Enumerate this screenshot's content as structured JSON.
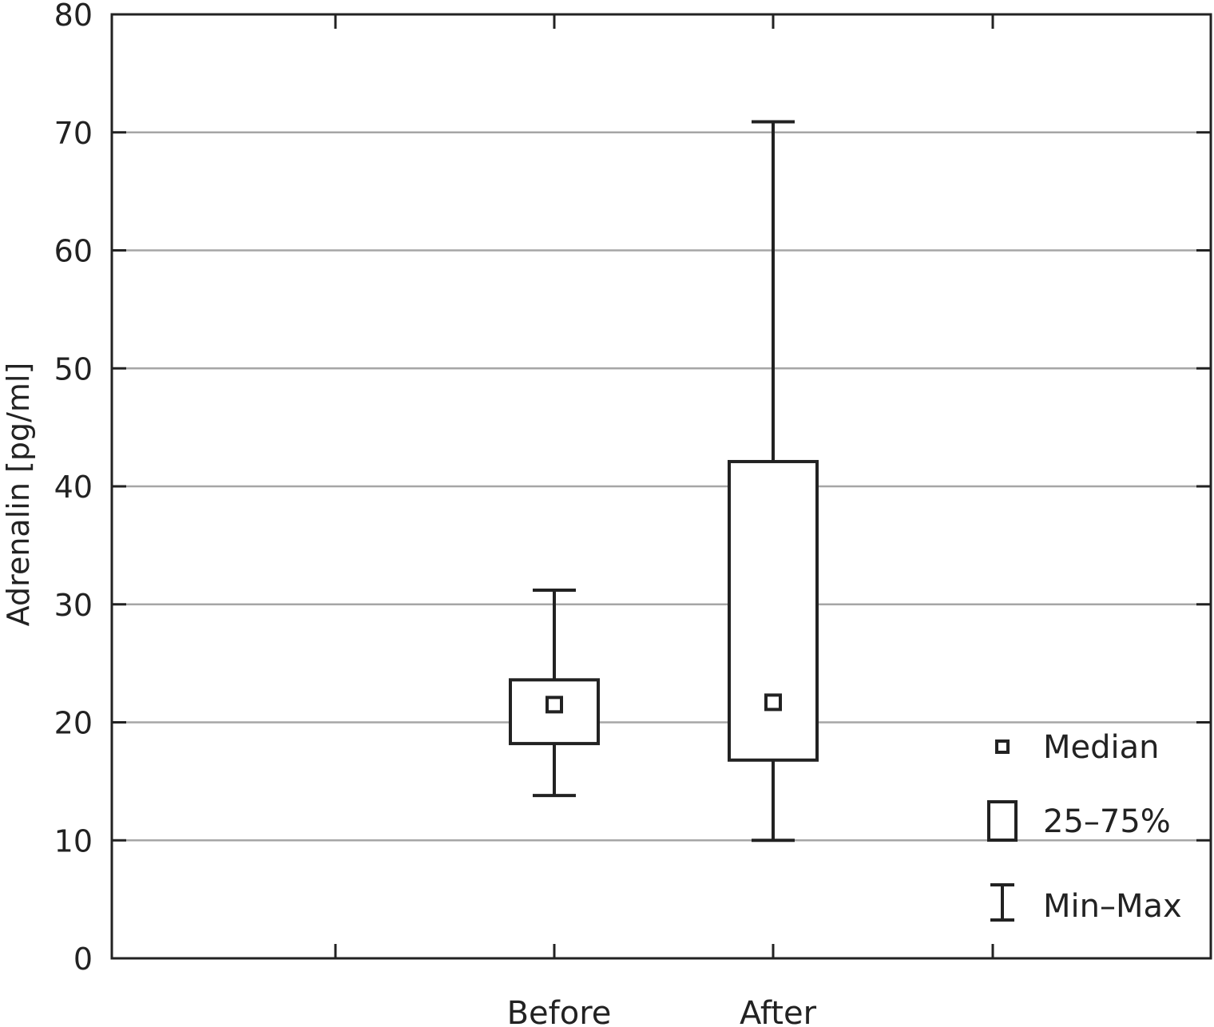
{
  "chart_data": {
    "type": "boxplot",
    "ylabel": "Adrenalin [pg/ml]",
    "xlabel": "",
    "ylim": [
      0,
      80
    ],
    "yticks": [
      0,
      10,
      20,
      30,
      40,
      50,
      60,
      70,
      80
    ],
    "grid": "horizontal",
    "categories": [
      "Before",
      "After"
    ],
    "boxes": [
      {
        "category": "Before",
        "min": 13.8,
        "q1": 18.2,
        "median": 21.5,
        "q3": 23.6,
        "max": 31.2
      },
      {
        "category": "After",
        "min": 10.0,
        "q1": 16.8,
        "median": 21.7,
        "q3": 42.1,
        "max": 70.9
      }
    ],
    "legend": {
      "position": "bottom-right",
      "items": [
        {
          "symbol": "median-square",
          "label": "Median"
        },
        {
          "symbol": "box",
          "label": "25–75%"
        },
        {
          "symbol": "whisker",
          "label": "Min–Max"
        }
      ]
    },
    "colors": {
      "line": "#222222",
      "grid": "#a6a6a6",
      "box_fill": "#ffffff"
    }
  }
}
